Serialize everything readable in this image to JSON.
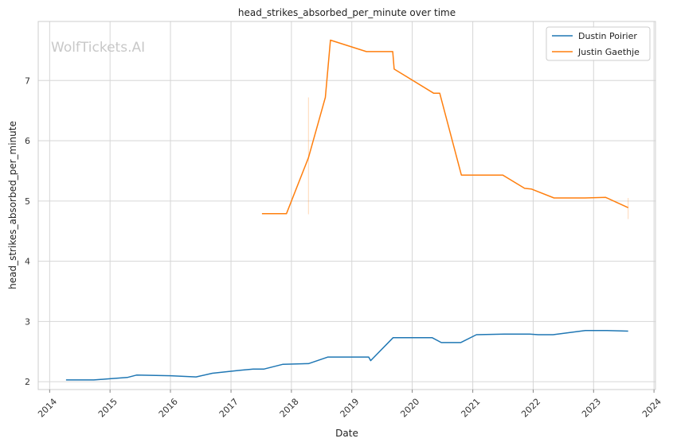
{
  "chart_data": {
    "type": "line",
    "title": "head_strikes_absorbed_per_minute over time",
    "xlabel": "Date",
    "ylabel": "head_strikes_absorbed_per_minute",
    "xlim": [
      "2013-10-24",
      "2024-01-10"
    ],
    "ylim": [
      1.87,
      7.98
    ],
    "x_ticks": [
      "2014",
      "2015",
      "2016",
      "2017",
      "2018",
      "2019",
      "2020",
      "2021",
      "2022",
      "2023",
      "2024"
    ],
    "y_ticks": [
      2,
      3,
      4,
      5,
      6,
      7
    ],
    "grid": true,
    "legend_position": "top-right",
    "watermark": "WolfTickets.AI",
    "series": [
      {
        "name": "Dustin Poirier",
        "color": "#1f77b4",
        "points": [
          [
            "2014-04-10",
            2.03
          ],
          [
            "2014-09-25",
            2.03
          ],
          [
            "2015-01-01",
            2.05
          ],
          [
            "2015-04-15",
            2.07
          ],
          [
            "2015-06-10",
            2.11
          ],
          [
            "2016-01-01",
            2.1
          ],
          [
            "2016-06-04",
            2.08
          ],
          [
            "2016-09-10",
            2.14
          ],
          [
            "2017-02-25",
            2.19
          ],
          [
            "2017-05-15",
            2.21
          ],
          [
            "2017-07-20",
            2.21
          ],
          [
            "2017-11-11",
            2.29
          ],
          [
            "2018-04-14",
            2.3
          ],
          [
            "2018-08-10",
            2.41
          ],
          [
            "2019-04-13",
            2.41
          ],
          [
            "2019-04-25",
            2.35
          ],
          [
            "2019-09-07",
            2.73
          ],
          [
            "2020-05-01",
            2.73
          ],
          [
            "2020-06-25",
            2.65
          ],
          [
            "2020-10-20",
            2.65
          ],
          [
            "2021-01-23",
            2.78
          ],
          [
            "2021-07-10",
            2.79
          ],
          [
            "2021-12-11",
            2.79
          ],
          [
            "2022-02-01",
            2.78
          ],
          [
            "2022-05-01",
            2.78
          ],
          [
            "2022-11-12",
            2.85
          ],
          [
            "2023-03-10",
            2.85
          ],
          [
            "2023-07-29",
            2.84
          ]
        ]
      },
      {
        "name": "Justin Gaethje",
        "color": "#ff7f0e",
        "points": [
          [
            "2017-07-07",
            4.79
          ],
          [
            "2017-12-02",
            4.79
          ],
          [
            "2018-04-14",
            5.72
          ],
          [
            "2018-07-25",
            6.72
          ],
          [
            "2018-08-25",
            7.67
          ],
          [
            "2019-03-30",
            7.48
          ],
          [
            "2019-09-05",
            7.48
          ],
          [
            "2019-09-14",
            7.19
          ],
          [
            "2020-05-09",
            6.79
          ],
          [
            "2020-06-15",
            6.79
          ],
          [
            "2020-10-24",
            5.43
          ],
          [
            "2021-07-01",
            5.43
          ],
          [
            "2021-11-10",
            5.21
          ],
          [
            "2021-12-20",
            5.2
          ],
          [
            "2022-05-07",
            5.05
          ],
          [
            "2022-11-10",
            5.05
          ],
          [
            "2023-03-15",
            5.06
          ],
          [
            "2023-07-29",
            4.89
          ]
        ]
      }
    ],
    "error_bars": [
      {
        "series": "Justin Gaethje",
        "x": "2018-04-14",
        "low": 4.78,
        "high": 6.72
      },
      {
        "series": "Justin Gaethje",
        "x": "2023-07-29",
        "low": 4.7,
        "high": 5.05
      }
    ]
  }
}
